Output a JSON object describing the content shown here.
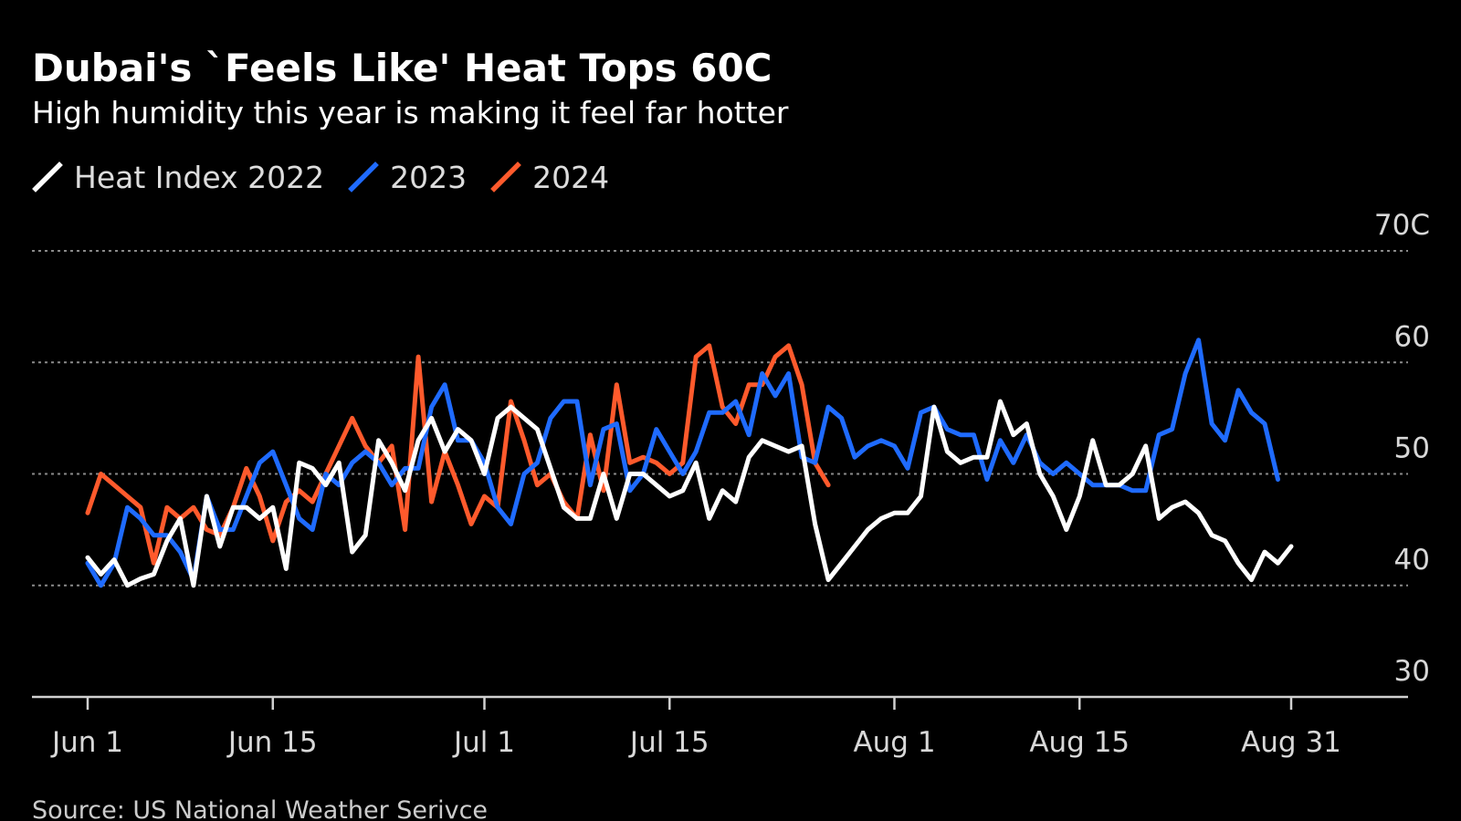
{
  "chart_data": {
    "type": "line",
    "title": "Dubai's `Feels Like' Heat Tops 60C",
    "subtitle": "High humidity this year is making it feel far hotter",
    "source": "Source: US National Weather Serivce",
    "x_start": "Jun 1",
    "x_ticks": [
      {
        "label": "Jun 1",
        "day": 0
      },
      {
        "label": "Jun 15",
        "day": 14
      },
      {
        "label": "Jul 1",
        "day": 30
      },
      {
        "label": "Jul 15",
        "day": 44
      },
      {
        "label": "Aug 1",
        "day": 61
      },
      {
        "label": "Aug 15",
        "day": 75
      },
      {
        "label": "Aug 31",
        "day": 91
      }
    ],
    "y_ticks": [
      {
        "label": "70C",
        "value": 70
      },
      {
        "label": "60",
        "value": 60
      },
      {
        "label": "50",
        "value": 50
      },
      {
        "label": "40",
        "value": 40
      },
      {
        "label": "30",
        "value": 30
      }
    ],
    "ylim": [
      30,
      70
    ],
    "grid": true,
    "legend_position": "top-left",
    "series": [
      {
        "name": "Heat Index 2022",
        "color": "#ffffff",
        "values": [
          42.5,
          41,
          42.3,
          40,
          40.6,
          41,
          44,
          46,
          40,
          48,
          43.5,
          47,
          47,
          46,
          47,
          41.5,
          51,
          50.5,
          49,
          51,
          43,
          44.5,
          53,
          51,
          48.5,
          53,
          55,
          52,
          54,
          53,
          50,
          55,
          56,
          55,
          54,
          50.5,
          47,
          46,
          46,
          50,
          46,
          50,
          50,
          49,
          48,
          48.5,
          51,
          46,
          48.5,
          47.5,
          51.5,
          53,
          52.5,
          52,
          52.5,
          45.5,
          40.5,
          42,
          43.5,
          45,
          46,
          46.5,
          46.5,
          48,
          56,
          52,
          51,
          51.5,
          51.5,
          56.5,
          53.5,
          54.5,
          50,
          48,
          45,
          48,
          53,
          49,
          49,
          50,
          52.5,
          46,
          47,
          47.5,
          46.5,
          44.5,
          44,
          42,
          40.5,
          43,
          42,
          43.5
        ]
      },
      {
        "name": "2023",
        "color": "#1f6bff",
        "values": [
          42,
          40,
          42,
          47,
          46,
          44.5,
          44.5,
          43,
          40.5,
          48,
          45,
          45,
          48,
          51,
          52,
          49,
          46,
          45,
          50,
          49,
          51,
          52,
          51,
          49,
          50.5,
          50.5,
          56,
          58,
          53,
          53,
          51,
          47,
          45.5,
          50,
          51,
          55,
          56.5,
          56.5,
          49,
          54,
          54.5,
          48.5,
          50,
          54,
          52,
          50,
          52,
          55.5,
          55.5,
          56.5,
          53.5,
          59,
          57,
          59,
          51.5,
          51,
          56,
          55,
          51.5,
          52.5,
          53,
          52.5,
          50.5,
          55.5,
          56,
          54,
          53.5,
          53.5,
          49.5,
          53,
          51,
          53.5,
          51,
          50,
          51,
          50,
          49,
          49,
          49,
          48.5,
          48.5,
          53.5,
          54,
          59,
          62,
          54.5,
          53,
          57.5,
          55.5,
          54.5,
          49.5
        ]
      },
      {
        "name": "2024",
        "color": "#ff5a2c",
        "values": [
          46.5,
          50,
          49,
          48,
          47,
          42,
          47,
          46,
          47,
          45,
          44.5,
          47,
          50.5,
          48,
          44,
          47.5,
          48.5,
          47.5,
          50,
          52.5,
          55,
          52.5,
          51,
          52.5,
          45,
          60.5,
          47.5,
          52,
          49,
          45.5,
          48,
          47,
          56.5,
          53,
          49,
          50,
          47.5,
          46,
          53.5,
          48.5,
          58,
          51,
          51.5,
          51,
          50,
          51,
          60.5,
          61.5,
          56,
          54.5,
          58,
          58,
          60.5,
          61.5,
          58,
          51,
          49
        ]
      }
    ]
  }
}
